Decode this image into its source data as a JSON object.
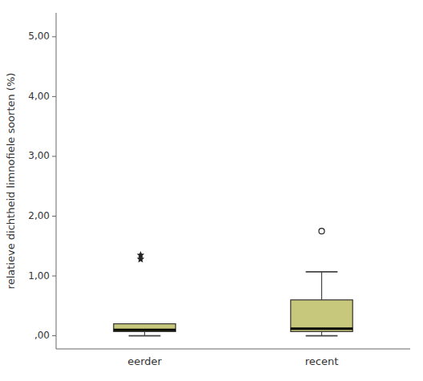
{
  "chart_data": {
    "type": "box",
    "ylabel": "relatieve dichtheid limnofiele soorten (%)",
    "categories": [
      "eerder",
      "recent"
    ],
    "q1": [
      0.07,
      0.07
    ],
    "median": [
      0.1,
      0.12
    ],
    "q3": [
      0.2,
      0.6
    ],
    "whisker_low": [
      0.0,
      0.0
    ],
    "whisker_high": [
      null,
      1.07
    ],
    "outliers_star": [
      [
        1.35,
        1.28
      ],
      []
    ],
    "outliers_circle": [
      [],
      [
        1.75
      ]
    ],
    "color": "#c8c87d",
    "ylim": [
      -0.22,
      5.4
    ],
    "yticks": [
      {
        "value": 0.0,
        "label": ",00"
      },
      {
        "value": 1.0,
        "label": "1,00"
      },
      {
        "value": 2.0,
        "label": "2,00"
      },
      {
        "value": 3.0,
        "label": "3,00"
      },
      {
        "value": 4.0,
        "label": "4,00"
      },
      {
        "value": 5.0,
        "label": "5,00"
      }
    ],
    "grid": false
  }
}
